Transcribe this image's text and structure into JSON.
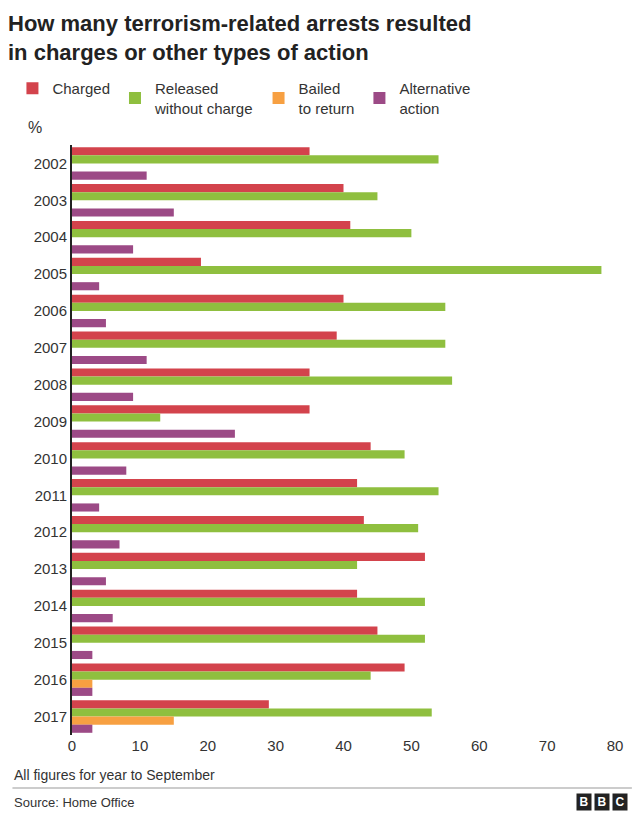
{
  "chart_data": {
    "type": "bar",
    "orientation": "horizontal",
    "title": [
      "How many terrorism-related arrests resulted",
      "in charges or other types of action"
    ],
    "xlabel": "%",
    "categories": [
      "2002",
      "2003",
      "2004",
      "2005",
      "2006",
      "2007",
      "2008",
      "2009",
      "2010",
      "2011",
      "2012",
      "2013",
      "2014",
      "2015",
      "2016",
      "2017"
    ],
    "series": [
      {
        "name": "Charged",
        "color": "#d3434c",
        "values": [
          35,
          40,
          41,
          19,
          40,
          39,
          35,
          35,
          44,
          42,
          43,
          52,
          42,
          45,
          49,
          29
        ]
      },
      {
        "name": "Released without charge",
        "color": "#8fbf3f",
        "values": [
          54,
          45,
          50,
          78,
          55,
          55,
          56,
          13,
          49,
          54,
          51,
          42,
          52,
          52,
          44,
          53
        ]
      },
      {
        "name": "Bailed to return",
        "color": "#f7a042",
        "values": [
          null,
          null,
          null,
          null,
          null,
          null,
          null,
          null,
          null,
          null,
          null,
          null,
          null,
          null,
          3,
          15
        ]
      },
      {
        "name": "Alternative action",
        "color": "#9c4a86",
        "values": [
          11,
          15,
          9,
          4,
          5,
          11,
          9,
          24,
          8,
          4,
          7,
          5,
          6,
          3,
          3,
          3
        ]
      }
    ],
    "xlim": [
      0,
      80
    ],
    "xticks": [
      0,
      10,
      20,
      30,
      40,
      50,
      60,
      70,
      80
    ],
    "grid": false,
    "legend": "top",
    "note": "All figures for year to September",
    "source": "Source: Home Office",
    "logo": "BBC"
  }
}
